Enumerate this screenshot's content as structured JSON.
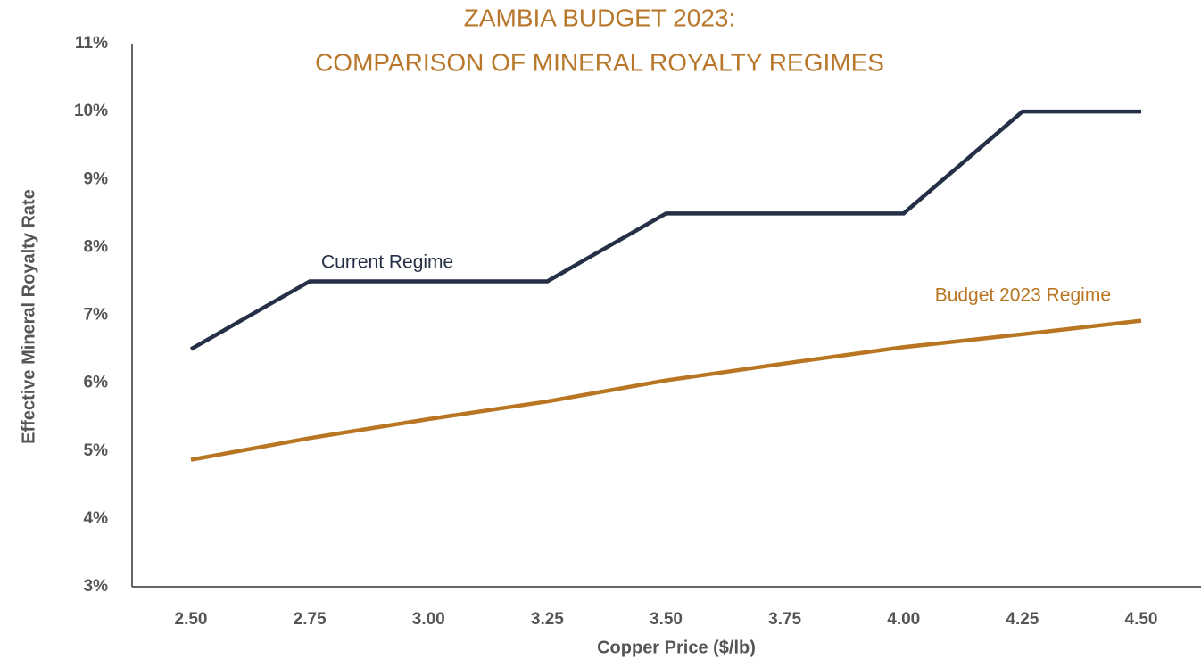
{
  "chart_data": {
    "type": "line",
    "title": [
      "ZAMBIA BUDGET 2023:",
      "COMPARISON OF MINERAL ROYALTY REGIMES"
    ],
    "x_label": "Copper Price ($/lb)",
    "y_label": "Effective Mineral Royalty Rate",
    "xlim": [
      2.5,
      4.5
    ],
    "ylim": [
      3,
      11
    ],
    "xticks": [
      {
        "value": 2.5,
        "label": "2.50"
      },
      {
        "value": 2.75,
        "label": "2.75"
      },
      {
        "value": 3,
        "label": "3.00"
      },
      {
        "value": 3.25,
        "label": "3.25"
      },
      {
        "value": 3.5,
        "label": "3.50"
      },
      {
        "value": 3.75,
        "label": "3.75"
      },
      {
        "value": 4,
        "label": "4.00"
      },
      {
        "value": 4.25,
        "label": "4.25"
      },
      {
        "value": 4.5,
        "label": "4.50"
      }
    ],
    "yticks": [
      {
        "value": 3,
        "label": "3%"
      },
      {
        "value": 4,
        "label": "4%"
      },
      {
        "value": 5,
        "label": "5%"
      },
      {
        "value": 6,
        "label": "6%"
      },
      {
        "value": 7,
        "label": "7%"
      },
      {
        "value": 8,
        "label": "8%"
      },
      {
        "value": 9,
        "label": "9%"
      },
      {
        "value": 10,
        "label": "10%"
      },
      {
        "value": 11,
        "label": "11%"
      }
    ],
    "grid": false,
    "series": [
      {
        "name": "Current Regime",
        "color": "#253047",
        "x": [
          2.5,
          2.75,
          3.25,
          3.5,
          4,
          4.25,
          4.5
        ],
        "values": [
          6.5,
          7.5,
          7.5,
          8.5,
          8.5,
          10,
          10
        ]
      },
      {
        "name": "Budget 2023 Regime",
        "color": "#b87622",
        "x": [
          2.5,
          2.75,
          3,
          3.25,
          3.5,
          3.75,
          4,
          4.25,
          4.5
        ],
        "values": [
          4.87,
          5.19,
          5.47,
          5.73,
          6.04,
          6.29,
          6.53,
          6.72,
          6.92
        ]
      }
    ]
  }
}
